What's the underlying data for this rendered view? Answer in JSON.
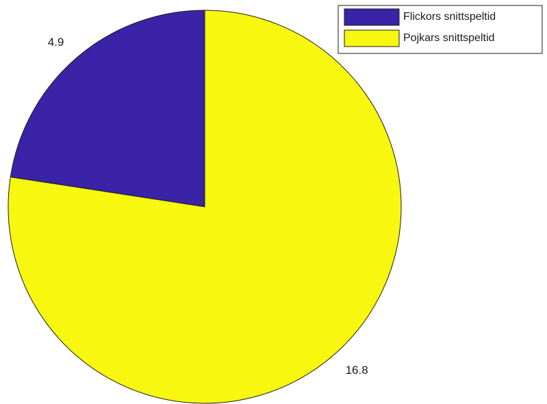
{
  "chart_data": {
    "type": "pie",
    "title": "",
    "slices": [
      {
        "label": "Flickors snittspeltid",
        "value": 4.9,
        "value_label": "4.9",
        "color": "#3a23a6"
      },
      {
        "label": "Pojkars snittspeltid",
        "value": 16.8,
        "value_label": "16.8",
        "color": "#f7f70f"
      }
    ],
    "start_angle_deg": 90,
    "direction": "counterclockwise",
    "legend": {
      "placement": "top-right"
    },
    "edge_color": "#1a1a1a"
  }
}
